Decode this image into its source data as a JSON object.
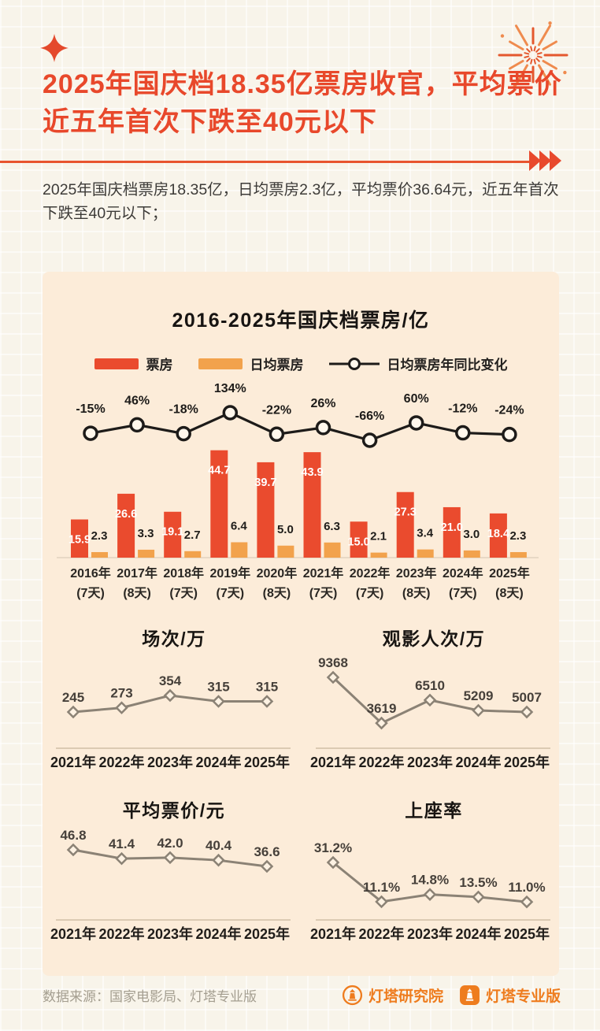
{
  "header": {
    "title": "2025年国庆档18.35亿票房收官，平均票价近五年首次下跌至40元以下",
    "intro": "2025年国庆档票房18.35亿，日均票房2.3亿，平均票价36.64元，近五年首次下跌至40元以下；"
  },
  "colors": {
    "accent_red": "#e8482b",
    "bar_red": "#ea4b2e",
    "bar_orange": "#f2a24c",
    "line_dark": "#1d1b19",
    "line_gray": "#8b8275",
    "card_bg": "#fcecd9",
    "logo_orange": "#ee7c1e"
  },
  "chart_data": [
    {
      "type": "bar",
      "title": "2016-2025年国庆档票房/亿",
      "categories": [
        "2016年",
        "2017年",
        "2018年",
        "2019年",
        "2020年",
        "2021年",
        "2022年",
        "2023年",
        "2024年",
        "2025年"
      ],
      "category_days": [
        "(7天)",
        "(8天)",
        "(7天)",
        "(7天)",
        "(8天)",
        "(7天)",
        "(7天)",
        "(8天)",
        "(7天)",
        "(8天)"
      ],
      "legend_position": "top",
      "series": [
        {
          "name": "票房",
          "type": "bar",
          "color": "#ea4b2e",
          "values": [
            15.9,
            26.6,
            19.1,
            44.7,
            39.7,
            43.9,
            15.0,
            27.3,
            21.0,
            18.4
          ],
          "labels": [
            "15.9",
            "26.6",
            "19.1",
            "44.7",
            "39.7",
            "43.9",
            "15.0",
            "27.3",
            "21.0",
            "18.4"
          ]
        },
        {
          "name": "日均票房",
          "type": "bar",
          "color": "#f2a24c",
          "values": [
            2.3,
            3.3,
            2.7,
            6.4,
            5.0,
            6.3,
            2.1,
            3.4,
            3.0,
            2.3
          ],
          "labels": [
            "2.3",
            "3.3",
            "2.7",
            "6.4",
            "5.0",
            "6.3",
            "2.1",
            "3.4",
            "3.0",
            "2.3"
          ]
        },
        {
          "name": "日均票房年同比变化",
          "type": "line",
          "color": "#1d1b19",
          "values": [
            -15,
            46,
            -18,
            134,
            -22,
            26,
            -66,
            60,
            -12,
            -24
          ],
          "labels": [
            "-15%",
            "46%",
            "-18%",
            "134%",
            "-22%",
            "26%",
            "-66%",
            "60%",
            "-12%",
            "-24%"
          ]
        }
      ]
    },
    {
      "type": "line",
      "title": "场次/万",
      "categories": [
        "2021年",
        "2022年",
        "2023年",
        "2024年",
        "2025年"
      ],
      "values": [
        245,
        273,
        354,
        315,
        315
      ],
      "labels": [
        "245",
        "273",
        "354",
        "315",
        "315"
      ]
    },
    {
      "type": "line",
      "title": "观影人次/万",
      "categories": [
        "2021年",
        "2022年",
        "2023年",
        "2024年",
        "2025年"
      ],
      "values": [
        9368,
        3619,
        6510,
        5209,
        5007
      ],
      "labels": [
        "9368",
        "3619",
        "6510",
        "5209",
        "5007"
      ]
    },
    {
      "type": "line",
      "title": "平均票价/元",
      "categories": [
        "2021年",
        "2022年",
        "2023年",
        "2024年",
        "2025年"
      ],
      "values": [
        46.8,
        41.4,
        42.0,
        40.4,
        36.6
      ],
      "labels": [
        "46.8",
        "41.4",
        "42.0",
        "40.4",
        "36.6"
      ]
    },
    {
      "type": "line",
      "title": "上座率",
      "categories": [
        "2021年",
        "2022年",
        "2023年",
        "2024年",
        "2025年"
      ],
      "values": [
        31.2,
        11.1,
        14.8,
        13.5,
        11.0
      ],
      "labels": [
        "31.2%",
        "11.1%",
        "14.8%",
        "13.5%",
        "11.0%"
      ]
    }
  ],
  "footer": {
    "source": "数据来源：国家电影局、灯塔专业版",
    "logo1": "灯塔研究院",
    "logo2": "灯塔专业版"
  }
}
